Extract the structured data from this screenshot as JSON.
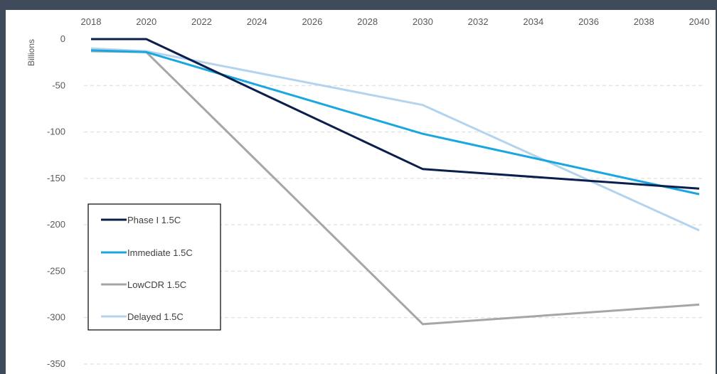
{
  "chart_data": {
    "type": "line",
    "title": "",
    "xlabel": "",
    "ylabel": "Billions",
    "x": [
      2018,
      2020,
      2030,
      2040
    ],
    "x_ticks": [
      "2018",
      "2020",
      "2022",
      "2024",
      "2026",
      "2028",
      "2030",
      "2032",
      "2034",
      "2036",
      "2038",
      "2040"
    ],
    "y_ticks": [
      "0",
      "-50",
      "-100",
      "-150",
      "-200",
      "-250",
      "-300",
      "-350"
    ],
    "xlim": [
      2018,
      2040
    ],
    "ylim": [
      -350,
      0
    ],
    "x_axis_position": "top",
    "grid": "horizontal-dashed",
    "legend_position": "bottom-left",
    "series": [
      {
        "name": "Phase I 1.5C",
        "color": "#0b1f4d",
        "values": [
          0,
          0,
          -140,
          -161
        ]
      },
      {
        "name": "Immediate 1.5C",
        "color": "#1aa7e0",
        "values": [
          -12,
          -14,
          -102,
          -167
        ]
      },
      {
        "name": "LowCDR 1.5C",
        "color": "#a6a6a6",
        "values": [
          -13,
          -14,
          -307,
          -286
        ]
      },
      {
        "name": "Delayed 1.5C",
        "color": "#b4d3ee",
        "values": [
          -10,
          -13,
          -71,
          -206
        ]
      }
    ]
  }
}
